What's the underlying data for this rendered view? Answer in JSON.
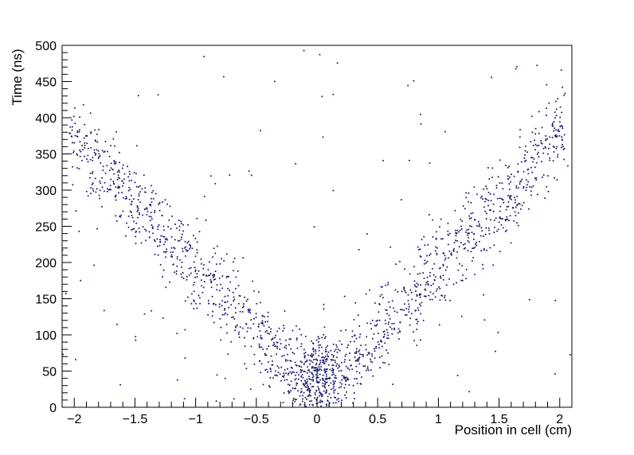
{
  "chart_data": {
    "type": "scatter",
    "title": "",
    "xlabel": "Position in cell (cm)",
    "ylabel": "Time (ns)",
    "xlim": [
      -2.1,
      2.1
    ],
    "ylim": [
      0,
      500
    ],
    "grid": false,
    "legend": "none",
    "x_major_ticks": [
      -2,
      -1.5,
      -1,
      -0.5,
      0,
      0.5,
      1,
      1.5,
      2
    ],
    "x_tick_labels": [
      "−2",
      "−1.5",
      "−1",
      "−0.5",
      "0",
      "0.5",
      "1",
      "1.5",
      "2"
    ],
    "x_minor_step": 0.1,
    "y_major_ticks": [
      0,
      50,
      100,
      150,
      200,
      250,
      300,
      350,
      400,
      450,
      500
    ],
    "y_tick_labels": [
      "0",
      "50",
      "100",
      "150",
      "200",
      "250",
      "300",
      "350",
      "400",
      "450",
      "500"
    ],
    "y_minor_step": 10,
    "tick_style": "inward",
    "major_tick_len": 12,
    "minor_tick_len": 7,
    "axis_color": "#000000",
    "marker_color": "#1c1c6e",
    "marker_size": 1,
    "distribution": {
      "description": "V-shaped drift-time vs drift-cell position scatter: time rises roughly linearly with |position|, dense cluster of short times near position 0, sparse uniform background",
      "seed": 42,
      "components": [
        {
          "kind": "arm",
          "n": 1500,
          "x_range": [
            -2.05,
            2.05
          ],
          "slope_ns_per_cm": 180,
          "intercept_ns": 12,
          "t_sigma_ns": 30
        },
        {
          "kind": "core",
          "n": 300,
          "x_mean": 0,
          "x_sigma": 0.13,
          "t_mean": 45,
          "t_sigma": 28
        },
        {
          "kind": "background",
          "n": 110,
          "x_range": [
            -2.1,
            2.1
          ],
          "t_range": [
            0,
            500
          ]
        }
      ]
    }
  }
}
